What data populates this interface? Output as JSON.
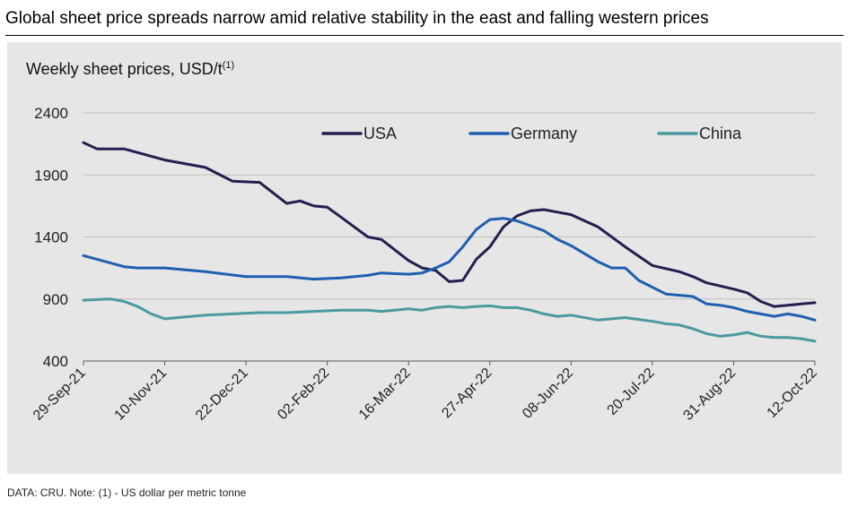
{
  "headline": "Global sheet price spreads narrow amid relative stability in the east and falling western prices",
  "subtitle_main": "Weekly sheet prices, USD/t",
  "subtitle_note": "(1)",
  "footer": "DATA: CRU.  Note: (1) - US dollar per metric tonne",
  "colors": {
    "USA": "#231f4f",
    "Germany": "#1f5fb0",
    "China": "#4a9a9f",
    "panel": "#e6e6e6",
    "grid": "#bdbdbd"
  },
  "chart_data": {
    "type": "line",
    "title": "Weekly sheet prices, USD/t",
    "ylim": [
      400,
      2400
    ],
    "yticks": [
      "400",
      "900",
      "1400",
      "1900",
      "2400"
    ],
    "xtick_labels": [
      "29-Sep-21",
      "10-Nov-21",
      "22-Dec-21",
      "02-Feb-22",
      "16-Mar-22",
      "27-Apr-22",
      "08-Jun-22",
      "20-Jul-22",
      "31-Aug-22",
      "12-Oct-22"
    ],
    "x_index_range": [
      0,
      54
    ],
    "series": [
      {
        "name": "USA",
        "x": [
          0,
          1,
          3,
          4,
          6,
          9,
          11,
          13,
          15,
          16,
          17,
          18,
          19,
          21,
          22,
          24,
          25,
          26,
          27,
          28,
          29,
          30,
          31,
          32,
          33,
          34,
          35,
          36,
          38,
          40,
          42,
          44,
          45,
          46,
          48,
          49,
          50,
          51,
          52,
          53,
          54
        ],
        "values": [
          2160,
          2110,
          2110,
          2080,
          2020,
          1960,
          1850,
          1840,
          1670,
          1690,
          1650,
          1640,
          1560,
          1400,
          1380,
          1210,
          1150,
          1130,
          1040,
          1050,
          1220,
          1320,
          1480,
          1570,
          1610,
          1620,
          1600,
          1580,
          1480,
          1320,
          1170,
          1120,
          1080,
          1030,
          980,
          950,
          880,
          840,
          850,
          860,
          870
        ]
      },
      {
        "name": "Germany",
        "x": [
          0,
          1,
          3,
          4,
          6,
          9,
          12,
          13,
          15,
          17,
          19,
          21,
          22,
          24,
          25,
          26,
          27,
          28,
          29,
          30,
          31,
          32,
          33,
          34,
          35,
          36,
          38,
          39,
          40,
          41,
          43,
          45,
          46,
          47,
          48,
          49,
          50,
          51,
          52,
          53,
          54
        ],
        "values": [
          1250,
          1220,
          1160,
          1150,
          1150,
          1120,
          1080,
          1080,
          1080,
          1060,
          1070,
          1090,
          1110,
          1100,
          1110,
          1150,
          1200,
          1320,
          1460,
          1540,
          1550,
          1530,
          1490,
          1450,
          1380,
          1330,
          1200,
          1150,
          1150,
          1050,
          940,
          920,
          860,
          850,
          830,
          800,
          780,
          760,
          780,
          760,
          730
        ]
      },
      {
        "name": "China",
        "x": [
          0,
          1,
          2,
          3,
          4,
          5,
          6,
          7,
          8,
          9,
          11,
          13,
          15,
          17,
          19,
          21,
          22,
          24,
          25,
          26,
          27,
          28,
          29,
          30,
          31,
          32,
          33,
          34,
          35,
          36,
          38,
          39,
          40,
          42,
          43,
          44,
          45,
          46,
          47,
          48,
          49,
          50,
          51,
          52,
          53,
          54
        ],
        "values": [
          890,
          895,
          900,
          880,
          840,
          780,
          740,
          750,
          760,
          770,
          780,
          790,
          790,
          800,
          810,
          810,
          800,
          820,
          810,
          830,
          840,
          830,
          840,
          845,
          830,
          830,
          810,
          780,
          760,
          770,
          730,
          740,
          750,
          720,
          700,
          690,
          660,
          620,
          600,
          610,
          630,
          600,
          590,
          590,
          580,
          560
        ]
      }
    ],
    "legend_position": "top-right"
  }
}
